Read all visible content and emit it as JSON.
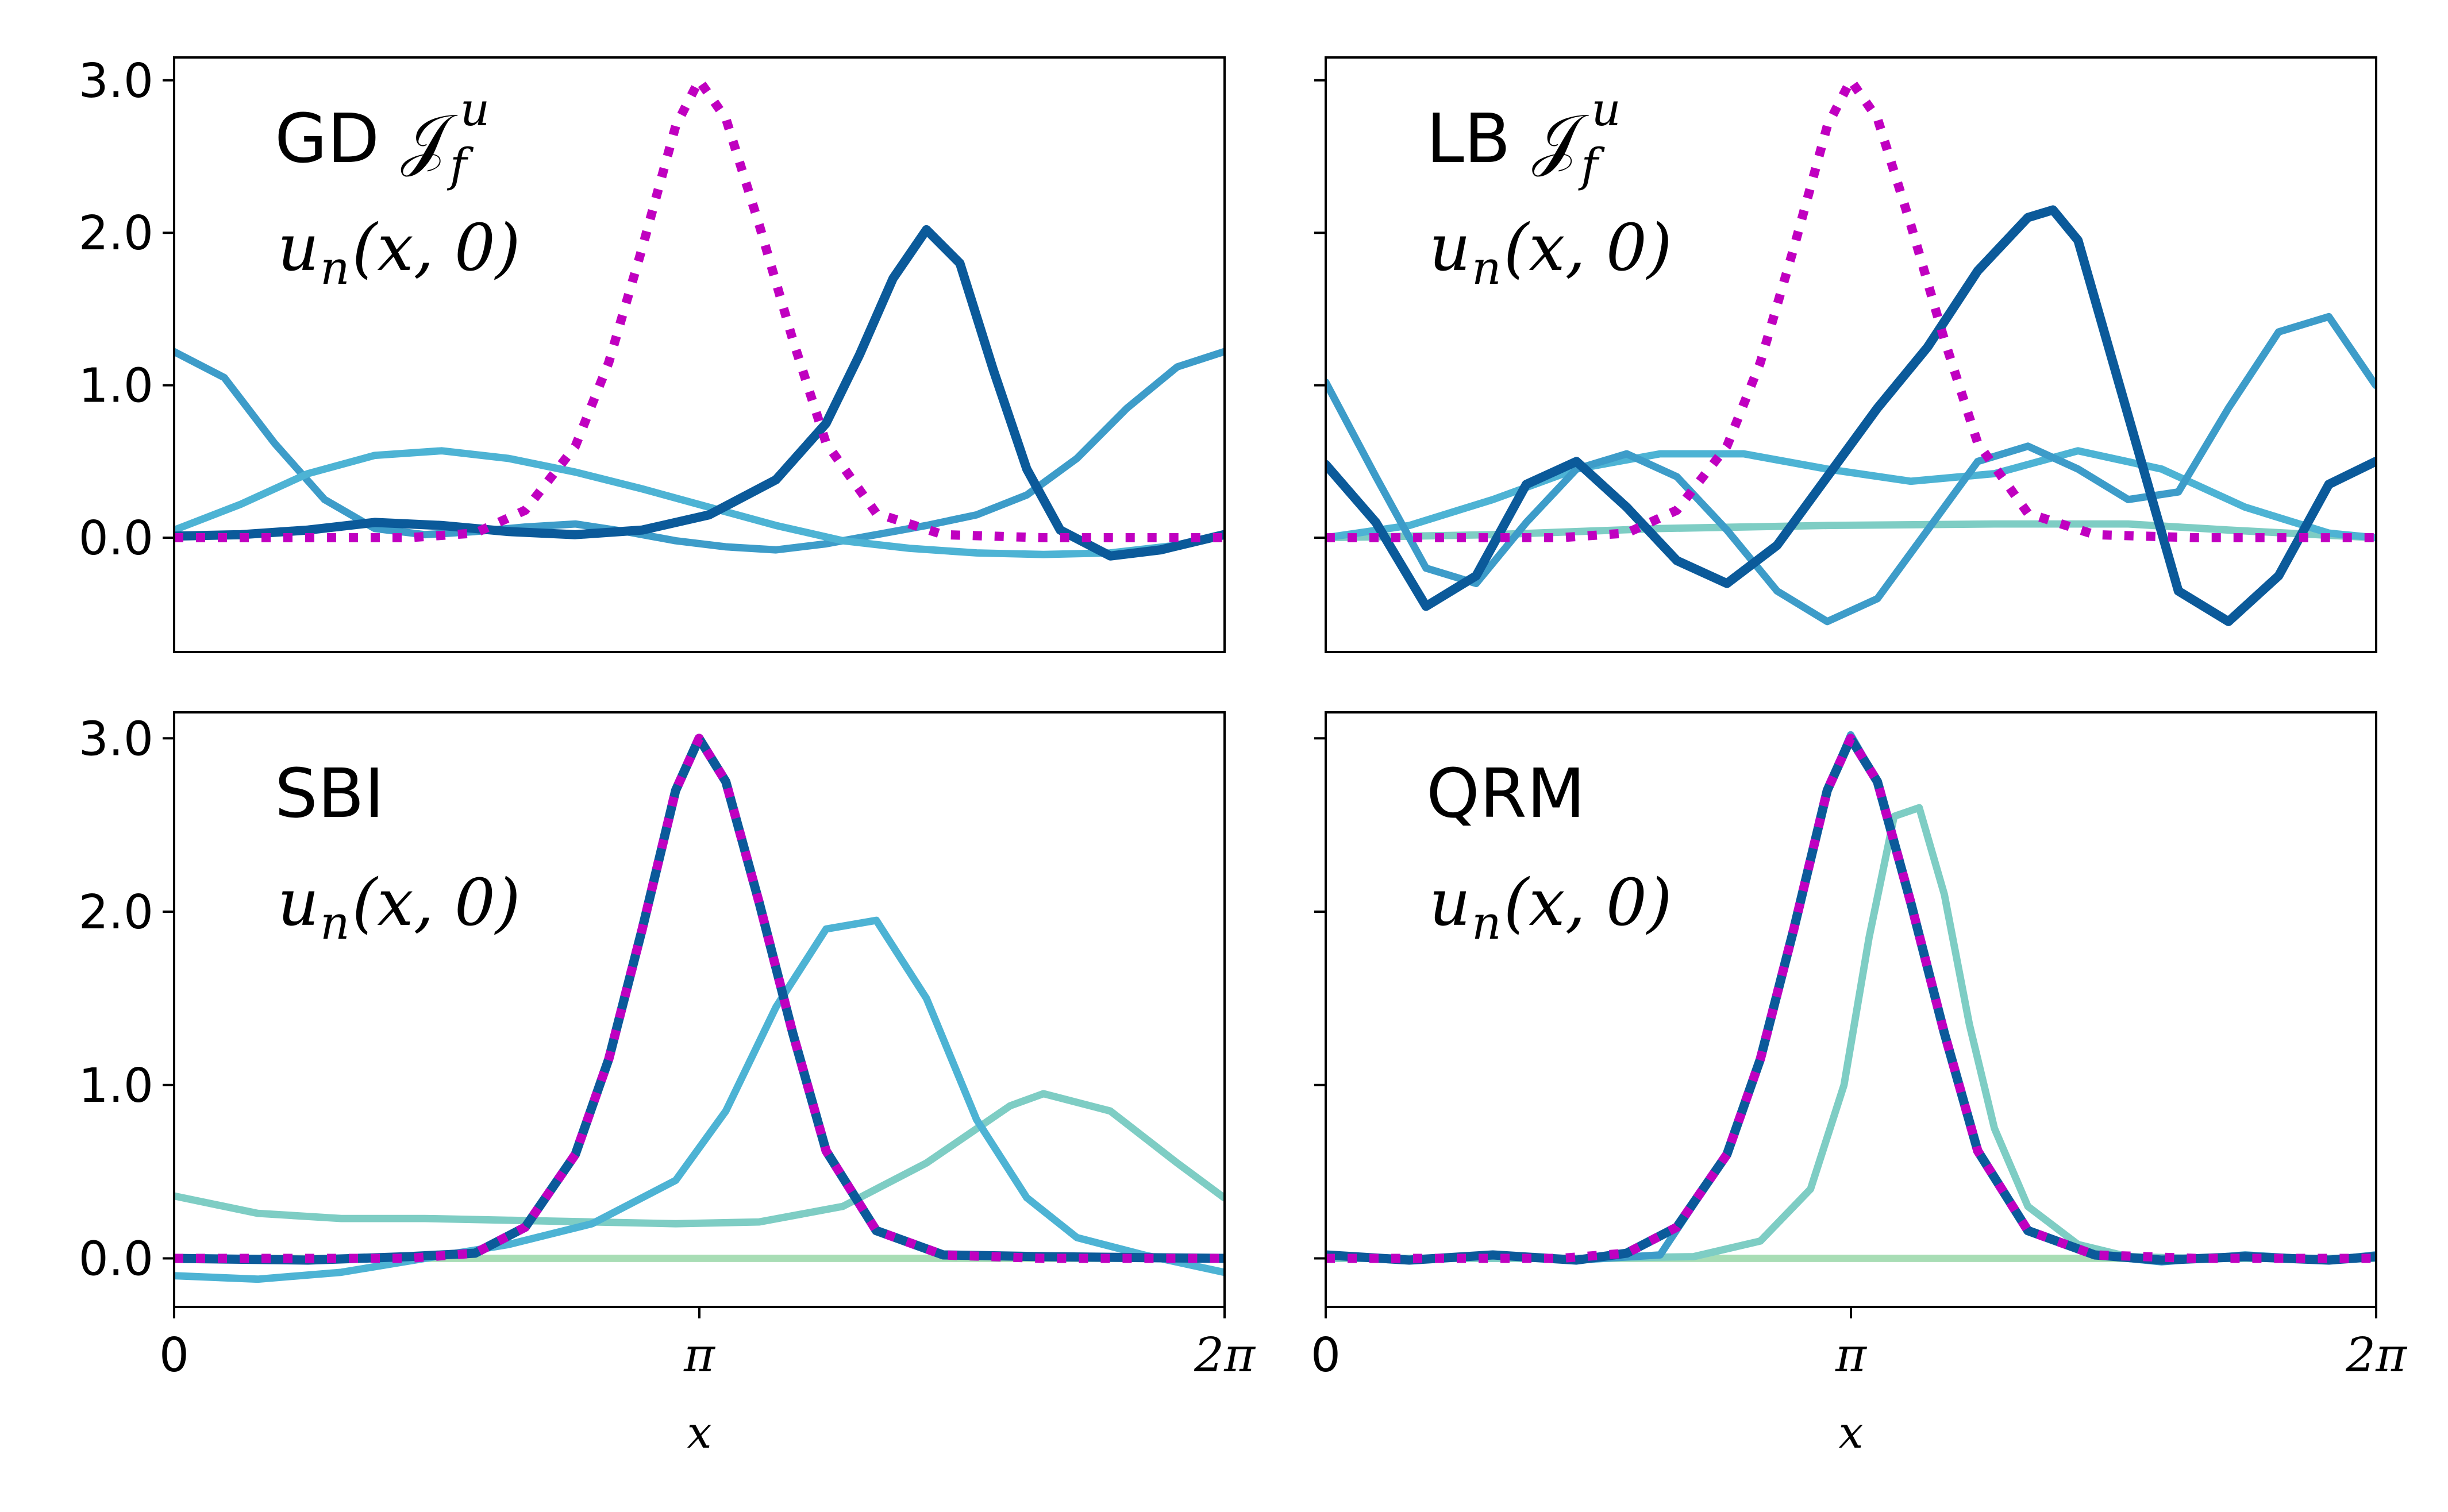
{
  "chart_data": [
    {
      "type": "line",
      "title": "GD 𝒥",
      "title_sup": "u",
      "title_sub": "f",
      "annotation": {
        "var": "u",
        "sub": "n",
        "args": "(x, 0)"
      },
      "xlim": [
        0,
        6.2832
      ],
      "ylim": [
        -0.75,
        3.15
      ],
      "yticks": [
        {
          "v": 0,
          "label": "0.0"
        },
        {
          "v": 1,
          "label": "1.0"
        },
        {
          "v": 2,
          "label": "2.0"
        },
        {
          "v": 3,
          "label": "3.0"
        }
      ],
      "xticks": [],
      "xlabel": "",
      "series": [
        {
          "color": "#3d9cc9",
          "width": 4,
          "style": "solid",
          "x": [
            0,
            0.3,
            0.6,
            0.9,
            1.2,
            1.5,
            1.8,
            2.1,
            2.4,
            2.7,
            3.0,
            3.3,
            3.6,
            3.9,
            4.2,
            4.5,
            4.8,
            5.1,
            5.4,
            5.7,
            6.0,
            6.28
          ],
          "y": [
            1.22,
            1.05,
            0.62,
            0.25,
            0.06,
            0.02,
            0.04,
            0.07,
            0.09,
            0.04,
            -0.02,
            -0.06,
            -0.08,
            -0.04,
            0.02,
            0.08,
            0.15,
            0.28,
            0.52,
            0.85,
            1.12,
            1.22
          ]
        },
        {
          "color": "#4db3d4",
          "width": 4,
          "style": "solid",
          "x": [
            0,
            0.4,
            0.8,
            1.2,
            1.6,
            2.0,
            2.4,
            2.8,
            3.2,
            3.6,
            4.0,
            4.4,
            4.8,
            5.2,
            5.6,
            6.0,
            6.28
          ],
          "y": [
            0.05,
            0.22,
            0.42,
            0.54,
            0.57,
            0.52,
            0.43,
            0.32,
            0.2,
            0.08,
            -0.02,
            -0.07,
            -0.1,
            -0.11,
            -0.1,
            -0.05,
            0.02
          ]
        },
        {
          "color": "#0b5a9a",
          "width": 5,
          "style": "solid",
          "x": [
            0,
            0.4,
            0.8,
            1.2,
            1.6,
            2.0,
            2.4,
            2.8,
            3.2,
            3.6,
            3.9,
            4.1,
            4.3,
            4.5,
            4.7,
            4.9,
            5.1,
            5.3,
            5.6,
            5.9,
            6.28
          ],
          "y": [
            0.01,
            0.02,
            0.05,
            0.1,
            0.08,
            0.04,
            0.02,
            0.05,
            0.15,
            0.38,
            0.75,
            1.2,
            1.7,
            2.02,
            1.8,
            1.1,
            0.45,
            0.05,
            -0.12,
            -0.08,
            0.02
          ]
        },
        {
          "color": "#c000c0",
          "width": 5,
          "style": "dotted",
          "x": [
            0,
            0.8,
            1.4,
            1.8,
            2.1,
            2.4,
            2.6,
            2.8,
            3.0,
            3.14,
            3.3,
            3.5,
            3.7,
            3.9,
            4.2,
            4.6,
            5.2,
            6.28
          ],
          "y": [
            0,
            0,
            0,
            0.03,
            0.18,
            0.6,
            1.15,
            1.9,
            2.7,
            3.0,
            2.75,
            2.05,
            1.3,
            0.62,
            0.16,
            0.02,
            0,
            0
          ]
        }
      ]
    },
    {
      "type": "line",
      "title": "LB 𝒥",
      "title_sup": "u",
      "title_sub": "f",
      "annotation": {
        "var": "u",
        "sub": "n",
        "args": "(x, 0)"
      },
      "xlim": [
        0,
        6.2832
      ],
      "ylim": [
        -0.75,
        3.15
      ],
      "yticks": [
        {
          "v": 0,
          "label": ""
        },
        {
          "v": 1,
          "label": ""
        },
        {
          "v": 2,
          "label": ""
        },
        {
          "v": 3,
          "label": ""
        }
      ],
      "xticks": [],
      "xlabel": "",
      "series": [
        {
          "color": "#7ecdc4",
          "width": 4,
          "style": "solid",
          "x": [
            0,
            1.0,
            2.0,
            3.0,
            4.0,
            4.8,
            5.4,
            6.28
          ],
          "y": [
            0,
            0.02,
            0.06,
            0.08,
            0.09,
            0.09,
            0.05,
            0
          ]
        },
        {
          "color": "#4db3d4",
          "width": 4,
          "style": "solid",
          "x": [
            0,
            0.5,
            1.0,
            1.5,
            2.0,
            2.5,
            3.0,
            3.5,
            4.0,
            4.5,
            5.0,
            5.5,
            6.0,
            6.28
          ],
          "y": [
            0,
            0.08,
            0.25,
            0.45,
            0.55,
            0.55,
            0.45,
            0.37,
            0.42,
            0.57,
            0.45,
            0.2,
            0.03,
            0
          ]
        },
        {
          "color": "#3d9cc9",
          "width": 4,
          "style": "solid",
          "x": [
            0,
            0.3,
            0.6,
            0.9,
            1.2,
            1.5,
            1.8,
            2.1,
            2.4,
            2.7,
            3.0,
            3.3,
            3.6,
            3.9,
            4.2,
            4.5,
            4.8,
            5.1,
            5.4,
            5.7,
            6.0,
            6.28
          ],
          "y": [
            1.02,
            0.4,
            -0.2,
            -0.3,
            0.1,
            0.45,
            0.55,
            0.4,
            0.05,
            -0.35,
            -0.55,
            -0.4,
            0.05,
            0.5,
            0.6,
            0.45,
            0.25,
            0.3,
            0.85,
            1.35,
            1.45,
            1.0
          ]
        },
        {
          "color": "#0b5a9a",
          "width": 5,
          "style": "solid",
          "x": [
            0,
            0.3,
            0.6,
            0.9,
            1.2,
            1.5,
            1.8,
            2.1,
            2.4,
            2.7,
            3.0,
            3.3,
            3.6,
            3.9,
            4.2,
            4.35,
            4.5,
            4.8,
            5.1,
            5.4,
            5.7,
            6.0,
            6.28
          ],
          "y": [
            0.48,
            0.1,
            -0.45,
            -0.25,
            0.35,
            0.5,
            0.2,
            -0.15,
            -0.3,
            -0.05,
            0.4,
            0.85,
            1.25,
            1.75,
            2.1,
            2.15,
            1.95,
            0.8,
            -0.35,
            -0.55,
            -0.25,
            0.35,
            0.5
          ]
        },
        {
          "color": "#c000c0",
          "width": 5,
          "style": "dotted",
          "x": [
            0,
            0.8,
            1.4,
            1.8,
            2.1,
            2.4,
            2.6,
            2.8,
            3.0,
            3.14,
            3.3,
            3.5,
            3.7,
            3.9,
            4.2,
            4.6,
            5.2,
            6.28
          ],
          "y": [
            0,
            0,
            0,
            0.03,
            0.18,
            0.6,
            1.15,
            1.9,
            2.7,
            3.0,
            2.75,
            2.05,
            1.3,
            0.62,
            0.16,
            0.02,
            0,
            0
          ]
        }
      ]
    },
    {
      "type": "line",
      "title": "SBI",
      "annotation": {
        "var": "u",
        "sub": "n",
        "args": "(x, 0)"
      },
      "xlim": [
        0,
        6.2832
      ],
      "ylim": [
        -0.28,
        3.15
      ],
      "yticks": [
        {
          "v": 0,
          "label": "0.0"
        },
        {
          "v": 1,
          "label": "1.0"
        },
        {
          "v": 2,
          "label": "2.0"
        },
        {
          "v": 3,
          "label": "3.0"
        }
      ],
      "xticks": [
        {
          "v": 0,
          "label": "0"
        },
        {
          "v": 3.1416,
          "label": "π"
        },
        {
          "v": 6.2832,
          "label": "2π"
        }
      ],
      "xlabel": "x",
      "series": [
        {
          "color": "#a8ddb5",
          "width": 4,
          "style": "solid",
          "x": [
            0,
            6.28
          ],
          "y": [
            0,
            0
          ]
        },
        {
          "color": "#7ecdc4",
          "width": 4,
          "style": "solid",
          "x": [
            0,
            0.5,
            1.0,
            1.5,
            2.0,
            2.5,
            3.0,
            3.5,
            4.0,
            4.5,
            5.0,
            5.2,
            5.6,
            6.0,
            6.28
          ],
          "y": [
            0.36,
            0.26,
            0.23,
            0.23,
            0.22,
            0.21,
            0.2,
            0.21,
            0.3,
            0.55,
            0.88,
            0.95,
            0.85,
            0.55,
            0.35
          ]
        },
        {
          "color": "#4db3d4",
          "width": 4,
          "style": "solid",
          "x": [
            0,
            0.5,
            1.0,
            1.5,
            2.0,
            2.5,
            3.0,
            3.3,
            3.6,
            3.9,
            4.2,
            4.5,
            4.8,
            5.1,
            5.4,
            5.8,
            6.28
          ],
          "y": [
            -0.1,
            -0.12,
            -0.08,
            0.0,
            0.08,
            0.2,
            0.45,
            0.85,
            1.45,
            1.9,
            1.95,
            1.5,
            0.8,
            0.35,
            0.12,
            0.02,
            -0.08
          ]
        },
        {
          "color": "#0b5a9a",
          "width": 5,
          "style": "solid",
          "x": [
            0,
            0.8,
            1.4,
            1.8,
            2.1,
            2.4,
            2.6,
            2.8,
            3.0,
            3.14,
            3.3,
            3.5,
            3.7,
            3.9,
            4.2,
            4.6,
            5.2,
            6.28
          ],
          "y": [
            0,
            -0.01,
            0.01,
            0.03,
            0.18,
            0.6,
            1.15,
            1.9,
            2.7,
            3.0,
            2.75,
            2.05,
            1.3,
            0.62,
            0.16,
            0.02,
            0.01,
            0
          ]
        },
        {
          "color": "#c000c0",
          "width": 5,
          "style": "dotted",
          "x": [
            0,
            0.8,
            1.4,
            1.8,
            2.1,
            2.4,
            2.6,
            2.8,
            3.0,
            3.14,
            3.3,
            3.5,
            3.7,
            3.9,
            4.2,
            4.6,
            5.2,
            6.28
          ],
          "y": [
            0,
            0,
            0,
            0.03,
            0.18,
            0.6,
            1.15,
            1.9,
            2.7,
            3.0,
            2.75,
            2.05,
            1.3,
            0.62,
            0.16,
            0.02,
            0,
            0
          ]
        }
      ]
    },
    {
      "type": "line",
      "title": "QRM",
      "annotation": {
        "var": "u",
        "sub": "n",
        "args": "(x, 0)"
      },
      "xlim": [
        0,
        6.2832
      ],
      "ylim": [
        -0.28,
        3.15
      ],
      "yticks": [
        {
          "v": 0,
          "label": ""
        },
        {
          "v": 1,
          "label": ""
        },
        {
          "v": 2,
          "label": ""
        },
        {
          "v": 3,
          "label": ""
        }
      ],
      "xticks": [
        {
          "v": 0,
          "label": "0"
        },
        {
          "v": 3.1416,
          "label": "π"
        },
        {
          "v": 6.2832,
          "label": "2π"
        }
      ],
      "xlabel": "x",
      "series": [
        {
          "color": "#a8ddb5",
          "width": 4,
          "style": "solid",
          "x": [
            0,
            6.28
          ],
          "y": [
            0,
            0
          ]
        },
        {
          "color": "#7ecdc4",
          "width": 4,
          "style": "solid",
          "x": [
            0,
            1.5,
            2.2,
            2.6,
            2.9,
            3.1,
            3.25,
            3.4,
            3.55,
            3.7,
            3.85,
            4.0,
            4.2,
            4.5,
            4.8,
            5.2,
            6.28
          ],
          "y": [
            0,
            0,
            0.01,
            0.1,
            0.4,
            1.0,
            1.85,
            2.55,
            2.6,
            2.1,
            1.35,
            0.75,
            0.3,
            0.08,
            0.01,
            0,
            0
          ]
        },
        {
          "color": "#3d9cc9",
          "width": 4,
          "style": "solid",
          "x": [
            0,
            0.5,
            1.0,
            1.5,
            2.0,
            2.4,
            2.6,
            2.8,
            3.0,
            3.14,
            3.3,
            3.5,
            3.7,
            3.9,
            4.2,
            4.6,
            5.0,
            5.5,
            6.0,
            6.28
          ],
          "y": [
            0.02,
            -0.01,
            0.02,
            -0.01,
            0.02,
            0.6,
            1.15,
            1.9,
            2.7,
            3.02,
            2.75,
            2.05,
            1.3,
            0.62,
            0.16,
            0.02,
            -0.02,
            0.02,
            -0.01,
            0.02
          ]
        },
        {
          "color": "#0b5a9a",
          "width": 5,
          "style": "solid",
          "x": [
            0,
            0.5,
            1.0,
            1.5,
            1.8,
            2.1,
            2.4,
            2.6,
            2.8,
            3.0,
            3.14,
            3.3,
            3.5,
            3.7,
            3.9,
            4.2,
            4.6,
            5.0,
            5.5,
            6.0,
            6.28
          ],
          "y": [
            0.02,
            -0.01,
            0.02,
            -0.01,
            0.03,
            0.18,
            0.6,
            1.15,
            1.9,
            2.7,
            3.0,
            2.75,
            2.05,
            1.3,
            0.62,
            0.16,
            0.02,
            -0.01,
            0.01,
            -0.01,
            0.01
          ]
        },
        {
          "color": "#c000c0",
          "width": 5,
          "style": "dotted",
          "x": [
            0,
            0.8,
            1.4,
            1.8,
            2.1,
            2.4,
            2.6,
            2.8,
            3.0,
            3.14,
            3.3,
            3.5,
            3.7,
            3.9,
            4.2,
            4.6,
            5.2,
            6.28
          ],
          "y": [
            0,
            0,
            0,
            0.03,
            0.18,
            0.6,
            1.15,
            1.9,
            2.7,
            3.0,
            2.75,
            2.05,
            1.3,
            0.62,
            0.16,
            0.02,
            0,
            0
          ]
        }
      ]
    }
  ]
}
